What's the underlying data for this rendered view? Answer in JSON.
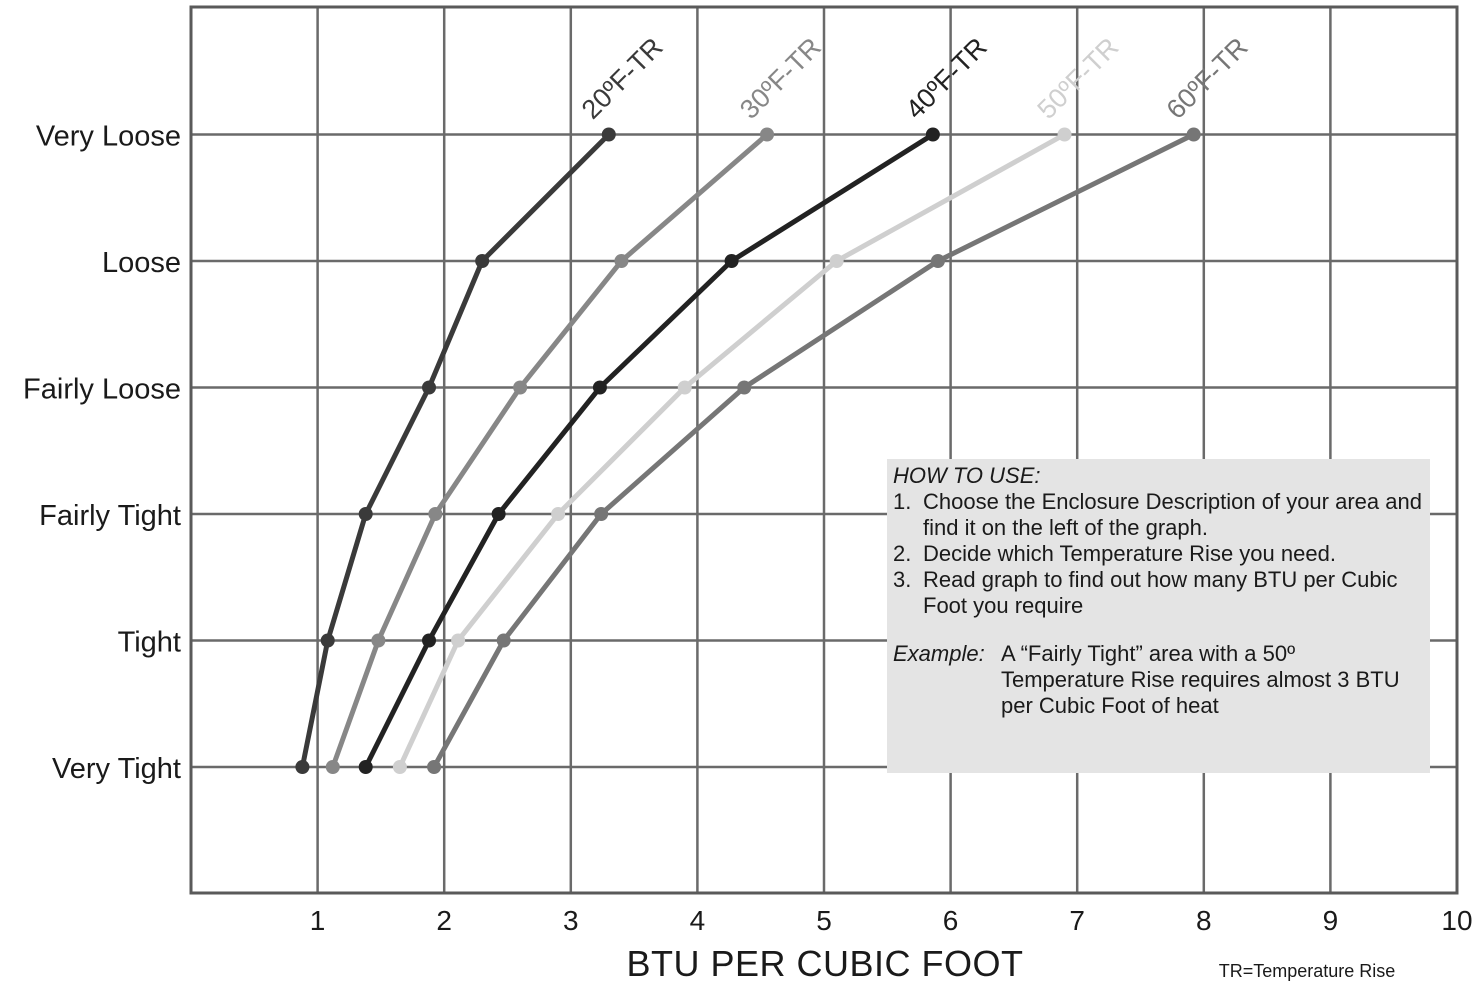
{
  "chart_data": {
    "type": "line",
    "xlabel": "BTU PER CUBIC FOOT",
    "xlim": [
      0,
      10
    ],
    "x_ticks": [
      1,
      2,
      3,
      4,
      5,
      6,
      7,
      8,
      9,
      10
    ],
    "categories": [
      "Very Tight",
      "Tight",
      "Fairly Tight",
      "Fairly Loose",
      "Loose",
      "Very Loose"
    ],
    "grid": true,
    "series": [
      {
        "name": "20ºF-TR",
        "color": "#3a3a3a",
        "values": [
          0.88,
          1.08,
          1.38,
          1.88,
          2.3,
          3.3
        ]
      },
      {
        "name": "30ºF-TR",
        "color": "#878787",
        "values": [
          1.12,
          1.48,
          1.93,
          2.6,
          3.4,
          4.55
        ]
      },
      {
        "name": "40ºF-TR",
        "color": "#222222",
        "values": [
          1.38,
          1.88,
          2.43,
          3.23,
          4.27,
          5.86
        ]
      },
      {
        "name": "50ºF-TR",
        "color": "#cfcfcf",
        "values": [
          1.65,
          2.11,
          2.9,
          3.9,
          5.1,
          6.9
        ]
      },
      {
        "name": "60ºF-TR",
        "color": "#767676",
        "values": [
          1.92,
          2.47,
          3.24,
          4.37,
          5.9,
          7.92
        ]
      }
    ],
    "footnote": "TR=Temperature Rise"
  },
  "how_to_use": {
    "title": "HOW TO USE:",
    "steps": [
      {
        "num": "1.",
        "text": "Choose the Enclosure Description of your area and find it on the left of the graph."
      },
      {
        "num": "2.",
        "text": "Decide which Temperature Rise you need."
      },
      {
        "num": "3.",
        "text": "Read graph to find out how many BTU per Cubic Foot you require"
      }
    ],
    "example_label": "Example:",
    "example_text": "A “Fairly Tight” area with a 50º Temperature Rise requires almost 3 BTU per Cubic Foot of heat"
  }
}
